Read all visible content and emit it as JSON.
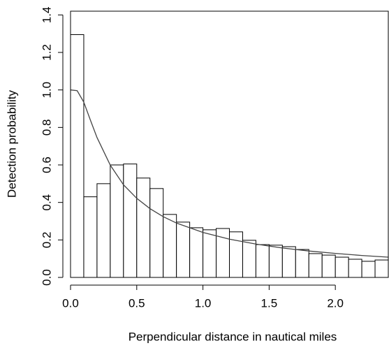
{
  "chart_data": {
    "type": "histogram",
    "xlabel": "Perpendicular distance in nautical miles",
    "ylabel": "Detection probability",
    "bins": [
      0,
      0.1,
      0.2,
      0.3,
      0.4,
      0.5,
      0.6,
      0.7,
      0.8,
      0.9,
      1.0,
      1.1,
      1.2,
      1.3,
      1.4,
      1.5,
      1.6,
      1.7,
      1.8,
      1.9,
      2.0,
      2.1,
      2.2,
      2.3,
      2.4
    ],
    "counts": [
      1.295,
      0.43,
      0.5,
      0.6,
      0.605,
      0.53,
      0.474,
      0.336,
      0.295,
      0.265,
      0.254,
      0.261,
      0.243,
      0.198,
      0.175,
      0.172,
      0.164,
      0.149,
      0.127,
      0.119,
      0.108,
      0.097,
      0.086,
      0.093
    ],
    "line": {
      "x": [
        0,
        0.05,
        0.1,
        0.15,
        0.2,
        0.3,
        0.4,
        0.5,
        0.6,
        0.7,
        0.8,
        1.0,
        1.2,
        1.4,
        1.6,
        1.8,
        2.0,
        2.2,
        2.4
      ],
      "values": [
        1,
        0.996,
        0.935,
        0.839,
        0.746,
        0.599,
        0.494,
        0.422,
        0.367,
        0.324,
        0.29,
        0.24,
        0.204,
        0.178,
        0.157,
        0.141,
        0.128,
        0.117,
        0.108
      ],
      "color": "#444444"
    },
    "color": "#ffffff",
    "xlim": [
      0,
      2.4
    ],
    "ylim": [
      0,
      1.42
    ],
    "xticks": [
      {
        "value": 0,
        "label": "0.0"
      },
      0.5,
      {
        "value": 1,
        "label": "1.0"
      },
      1.5,
      {
        "value": 2,
        "label": "2.0"
      }
    ],
    "yticks": [
      {
        "value": 0,
        "label": "0.0"
      },
      0.2,
      0.4,
      0.6,
      0.8,
      {
        "value": 1,
        "label": "1.0"
      },
      1.2,
      1.4
    ]
  }
}
